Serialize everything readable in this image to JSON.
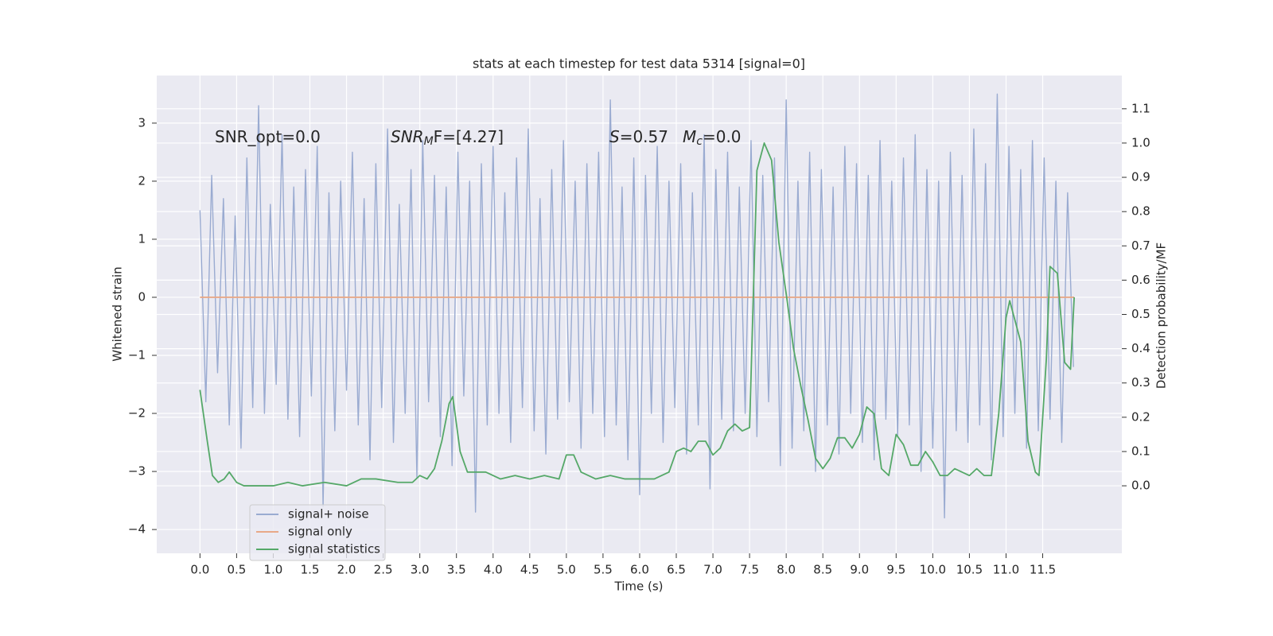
{
  "chart_data": {
    "type": "line",
    "title": "stats at each timestep for test data 5314 [signal=0]",
    "xlabel": "Time (s)",
    "ylabel": "Whitened strain",
    "y2label": "Detection probability/MF",
    "annotations": [
      [
        {
          "text": "SNR_opt=0.0"
        }
      ],
      [
        {
          "text": "SNR",
          "italic": true
        },
        {
          "text": "M",
          "italic": true,
          "subscript": true
        },
        {
          "text": "F=[4.27]",
          "italic": false
        }
      ],
      [
        {
          "text": "S",
          "italic": true
        },
        {
          "text": "=0.57"
        }
      ],
      [
        {
          "text": "M",
          "italic": true
        },
        {
          "text": "c",
          "italic": true,
          "subscript": true
        },
        {
          "text": "=0.0"
        }
      ]
    ],
    "xlim": [
      -0.59,
      12.58
    ],
    "ylim": [
      -4.41,
      3.82
    ],
    "y2lim": [
      -0.197,
      1.197
    ],
    "xticks": [
      {
        "value": 0,
        "label": "0.0"
      },
      {
        "value": 0.5,
        "label": "0.5"
      },
      {
        "value": 1,
        "label": "1.0"
      },
      {
        "value": 1.5,
        "label": "1.5"
      },
      {
        "value": 2,
        "label": "2.0"
      },
      {
        "value": 2.5,
        "label": "2.5"
      },
      {
        "value": 3,
        "label": "3.0"
      },
      {
        "value": 3.5,
        "label": "3.5"
      },
      {
        "value": 4,
        "label": "4.0"
      },
      {
        "value": 4.5,
        "label": "4.5"
      },
      {
        "value": 5,
        "label": "5.0"
      },
      {
        "value": 5.5,
        "label": "5.5"
      },
      {
        "value": 6,
        "label": "6.0"
      },
      {
        "value": 6.5,
        "label": "6.5"
      },
      {
        "value": 7,
        "label": "7.0"
      },
      {
        "value": 7.5,
        "label": "7.5"
      },
      {
        "value": 8,
        "label": "8.0"
      },
      {
        "value": 8.5,
        "label": "8.5"
      },
      {
        "value": 9,
        "label": "9.0"
      },
      {
        "value": 9.5,
        "label": "9.5"
      },
      {
        "value": 10,
        "label": "10.0"
      },
      {
        "value": 10.5,
        "label": "10.5"
      },
      {
        "value": 11,
        "label": "11.0"
      },
      {
        "value": 11.5,
        "label": "11.5"
      }
    ],
    "yticks": [
      {
        "value": -4,
        "label": "−4"
      },
      {
        "value": -3,
        "label": "−3"
      },
      {
        "value": -2,
        "label": "−2"
      },
      {
        "value": -1,
        "label": "−1"
      },
      0,
      1,
      2,
      3
    ],
    "y2ticks": [
      {
        "value": 0,
        "label": "0.0"
      },
      {
        "value": 0.1,
        "label": "0.1"
      },
      {
        "value": 0.2,
        "label": "0.2"
      },
      {
        "value": 0.3,
        "label": "0.3"
      },
      {
        "value": 0.4,
        "label": "0.4"
      },
      {
        "value": 0.5,
        "label": "0.5"
      },
      {
        "value": 0.6,
        "label": "0.6"
      },
      {
        "value": 0.7,
        "label": "0.7"
      },
      {
        "value": 0.8,
        "label": "0.8"
      },
      {
        "value": 0.9,
        "label": "0.9"
      },
      {
        "value": 1,
        "label": "1.0"
      },
      {
        "value": 1.1,
        "label": "1.1"
      }
    ],
    "grid": true,
    "legend": "lower left",
    "series": [
      {
        "name": "signal+ noise",
        "color": "#9aabd1",
        "x": [
          0,
          0.08,
          0.16,
          0.24,
          0.32,
          0.4,
          0.48,
          0.56,
          0.64,
          0.72,
          0.8,
          0.88,
          0.96,
          1.04,
          1.12,
          1.2,
          1.28,
          1.36,
          1.44,
          1.52,
          1.6,
          1.68,
          1.76,
          1.84,
          1.92,
          2,
          2.08,
          2.16,
          2.24,
          2.32,
          2.4,
          2.48,
          2.56,
          2.64,
          2.72,
          2.8,
          2.88,
          2.96,
          3.04,
          3.12,
          3.2,
          3.28,
          3.36,
          3.44,
          3.52,
          3.6,
          3.68,
          3.76,
          3.84,
          3.92,
          4,
          4.08,
          4.16,
          4.24,
          4.32,
          4.4,
          4.48,
          4.56,
          4.64,
          4.72,
          4.8,
          4.88,
          4.96,
          5.04,
          5.12,
          5.2,
          5.28,
          5.36,
          5.44,
          5.52,
          5.6,
          5.68,
          5.76,
          5.84,
          5.92,
          6,
          6.08,
          6.16,
          6.24,
          6.32,
          6.4,
          6.48,
          6.56,
          6.64,
          6.72,
          6.8,
          6.88,
          6.96,
          7.04,
          7.12,
          7.2,
          7.28,
          7.36,
          7.44,
          7.52,
          7.6,
          7.68,
          7.76,
          7.84,
          7.92,
          8,
          8.08,
          8.16,
          8.24,
          8.32,
          8.4,
          8.48,
          8.56,
          8.64,
          8.72,
          8.8,
          8.88,
          8.96,
          9.04,
          9.12,
          9.2,
          9.28,
          9.36,
          9.44,
          9.52,
          9.6,
          9.68,
          9.76,
          9.84,
          9.92,
          10,
          10.08,
          10.16,
          10.24,
          10.32,
          10.4,
          10.48,
          10.56,
          10.64,
          10.72,
          10.8,
          10.88,
          10.96,
          11.04,
          11.12,
          11.2,
          11.28,
          11.36,
          11.44,
          11.52,
          11.6,
          11.68,
          11.76,
          11.84,
          11.92
        ],
        "values": [
          1.5,
          -1.8,
          2.1,
          -1.3,
          1.7,
          -2.2,
          1.4,
          -2.6,
          2.4,
          -1.9,
          3.3,
          -2.0,
          1.6,
          -1.5,
          2.8,
          -2.1,
          1.9,
          -2.4,
          2.2,
          -1.7,
          2.6,
          -3.6,
          1.8,
          -2.3,
          2.0,
          -1.6,
          2.5,
          -2.2,
          1.7,
          -2.8,
          2.3,
          -1.9,
          2.9,
          -2.5,
          1.6,
          -2.0,
          2.2,
          -3.1,
          2.7,
          -1.8,
          2.1,
          -2.4,
          1.9,
          -2.9,
          2.5,
          -1.7,
          2.0,
          -3.7,
          2.3,
          -2.2,
          2.6,
          -2.0,
          1.8,
          -2.5,
          2.4,
          -1.9,
          2.9,
          -2.3,
          1.7,
          -2.7,
          2.2,
          -2.1,
          2.7,
          -1.8,
          2.0,
          -2.6,
          2.3,
          -2.0,
          2.5,
          -2.4,
          3.4,
          -2.2,
          1.9,
          -2.8,
          2.4,
          -3.4,
          2.1,
          -2.0,
          2.6,
          -2.5,
          2.0,
          -1.9,
          2.3,
          -2.7,
          1.8,
          -2.2,
          2.8,
          -3.3,
          2.2,
          -2.1,
          2.5,
          -2.3,
          1.9,
          -2.0,
          2.7,
          -2.4,
          2.1,
          -1.8,
          2.4,
          -2.9,
          3.4,
          -2.6,
          2.0,
          -2.3,
          2.5,
          -3.0,
          2.2,
          -2.2,
          1.9,
          -2.7,
          2.6,
          -2.0,
          2.3,
          -2.5,
          2.1,
          -2.8,
          2.7,
          -2.1,
          2.0,
          -2.4,
          2.4,
          -2.2,
          2.8,
          -3.0,
          2.2,
          -2.6,
          2.0,
          -3.8,
          2.5,
          -2.3,
          2.1,
          -2.5,
          2.9,
          -2.2,
          2.3,
          -2.8,
          3.5,
          -2.4,
          2.6,
          -2.0,
          2.2,
          -2.6,
          2.7,
          -2.3,
          2.4,
          -2.1,
          2.0,
          -2.5,
          1.8,
          -1.2
        ]
      },
      {
        "name": "signal only",
        "color": "#e8a988",
        "x": [
          0,
          11.93
        ],
        "values": [
          0,
          0
        ]
      },
      {
        "name": "signal statistics",
        "color": "#55a868",
        "axis": "y2",
        "x": [
          0,
          0.1,
          0.17,
          0.25,
          0.33,
          0.4,
          0.5,
          0.6,
          0.8,
          1,
          1.2,
          1.4,
          1.7,
          2,
          2.2,
          2.4,
          2.7,
          2.9,
          3,
          3.1,
          3.2,
          3.3,
          3.4,
          3.45,
          3.55,
          3.65,
          3.8,
          3.9,
          4.1,
          4.3,
          4.5,
          4.7,
          4.9,
          5,
          5.1,
          5.2,
          5.4,
          5.6,
          5.8,
          6,
          6.2,
          6.4,
          6.5,
          6.6,
          6.7,
          6.8,
          6.9,
          7,
          7.1,
          7.2,
          7.3,
          7.4,
          7.5,
          7.6,
          7.7,
          7.8,
          7.9,
          8,
          8.1,
          8.2,
          8.3,
          8.4,
          8.5,
          8.6,
          8.7,
          8.8,
          8.9,
          9,
          9.1,
          9.2,
          9.3,
          9.4,
          9.5,
          9.6,
          9.7,
          9.8,
          9.9,
          10,
          10.1,
          10.2,
          10.3,
          10.5,
          10.6,
          10.7,
          10.8,
          10.9,
          11,
          11.05,
          11.2,
          11.3,
          11.4,
          11.45,
          11.55,
          11.6,
          11.7,
          11.8,
          11.88,
          11.93
        ],
        "values": [
          0.28,
          0.13,
          0.03,
          0.01,
          0.02,
          0.04,
          0.01,
          0,
          0,
          0,
          0.01,
          0,
          0.01,
          0,
          0.02,
          0.02,
          0.01,
          0.01,
          0.03,
          0.02,
          0.05,
          0.13,
          0.24,
          0.26,
          0.1,
          0.04,
          0.04,
          0.04,
          0.02,
          0.03,
          0.02,
          0.03,
          0.02,
          0.09,
          0.09,
          0.04,
          0.02,
          0.03,
          0.02,
          0.02,
          0.02,
          0.04,
          0.1,
          0.11,
          0.1,
          0.13,
          0.13,
          0.09,
          0.11,
          0.16,
          0.18,
          0.16,
          0.17,
          0.92,
          1.0,
          0.95,
          0.71,
          0.56,
          0.4,
          0.29,
          0.19,
          0.08,
          0.05,
          0.08,
          0.14,
          0.14,
          0.11,
          0.15,
          0.23,
          0.21,
          0.05,
          0.03,
          0.15,
          0.12,
          0.06,
          0.06,
          0.1,
          0.07,
          0.03,
          0.03,
          0.05,
          0.03,
          0.05,
          0.03,
          0.03,
          0.21,
          0.49,
          0.54,
          0.42,
          0.13,
          0.04,
          0.03,
          0.37,
          0.64,
          0.62,
          0.36,
          0.34,
          0.55
        ]
      }
    ]
  }
}
